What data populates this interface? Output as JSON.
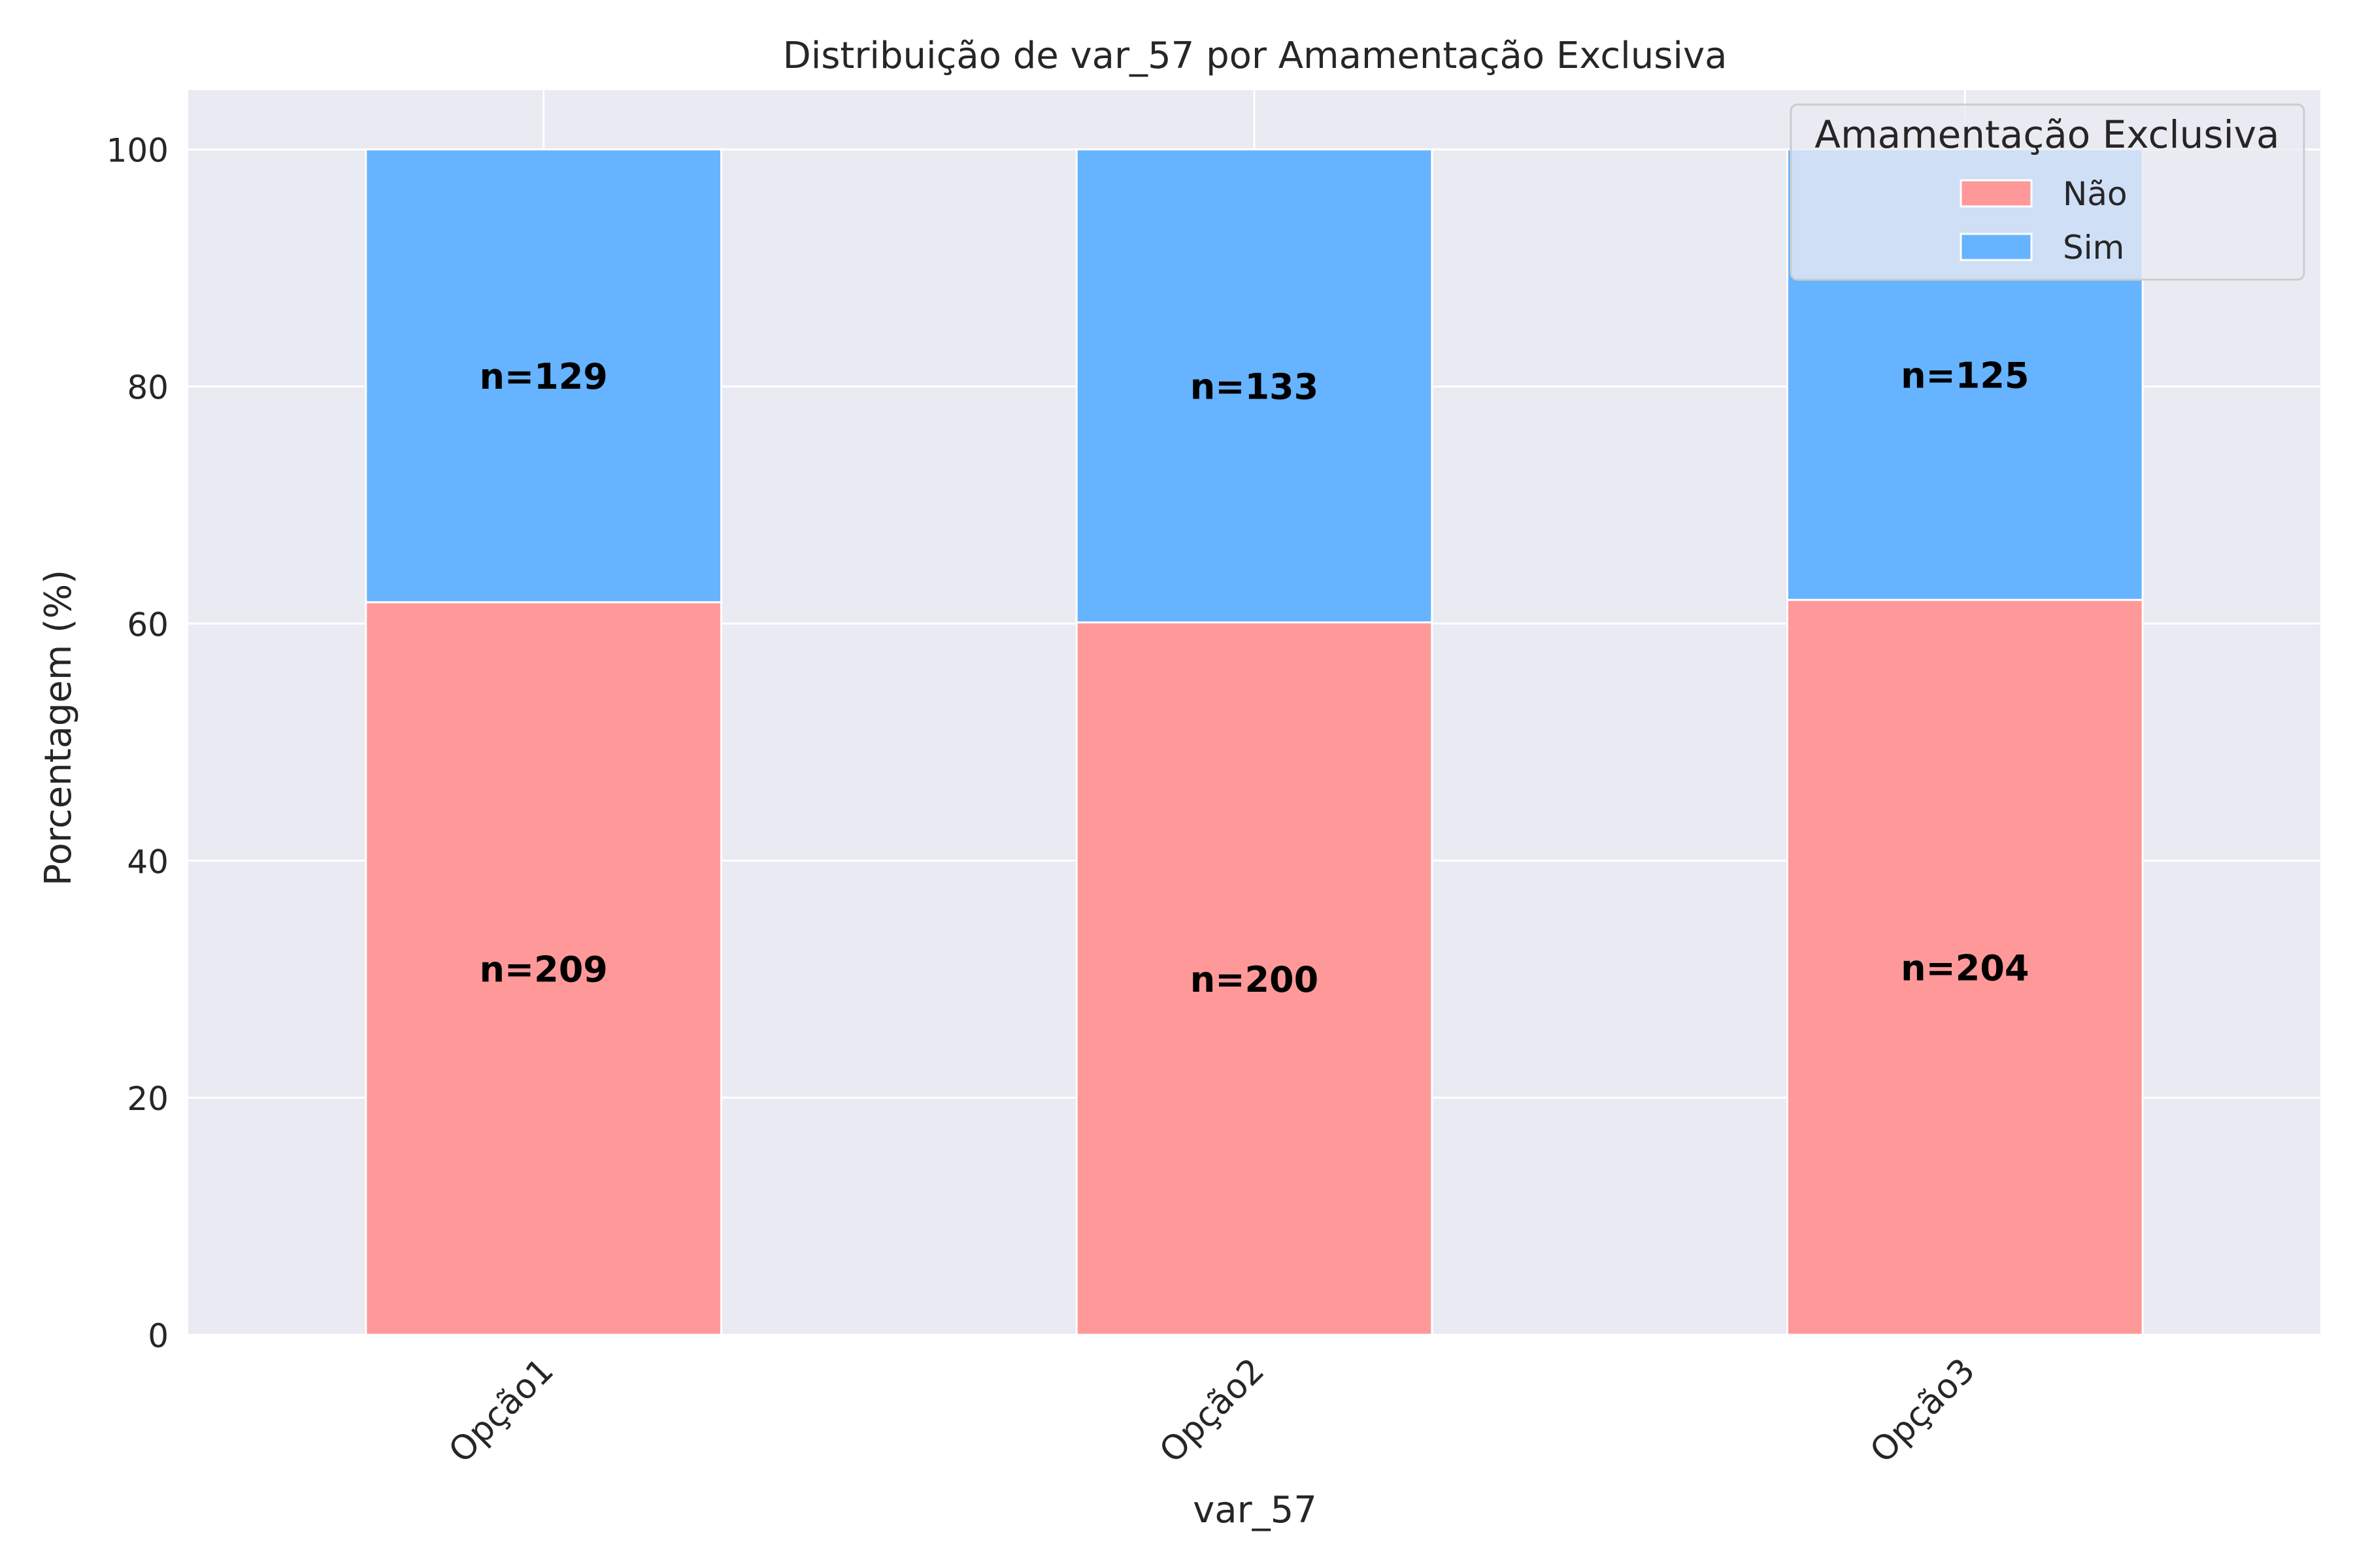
{
  "chart_data": {
    "type": "bar",
    "stacked": true,
    "title": "Distribuição de var_57 por Amamentação Exclusiva",
    "xlabel": "var_57",
    "ylabel": "Porcentagem (%)",
    "ylim": [
      0,
      105
    ],
    "yticks": [
      0,
      20,
      40,
      60,
      80,
      100
    ],
    "categories": [
      "Opção1",
      "Opção2",
      "Opção3"
    ],
    "grid": true,
    "legend": {
      "title": "Amamentação Exclusiva",
      "position": "top-right"
    },
    "series": [
      {
        "name": "Não",
        "color": "#ff9999",
        "values": [
          61.8,
          60.1,
          62.0
        ],
        "counts": [
          "n=209",
          "n=200",
          "n=204"
        ]
      },
      {
        "name": "Sim",
        "color": "#66b3ff",
        "values": [
          38.2,
          39.9,
          38.0
        ],
        "counts": [
          "n=129",
          "n=133",
          "n=125"
        ]
      }
    ]
  }
}
